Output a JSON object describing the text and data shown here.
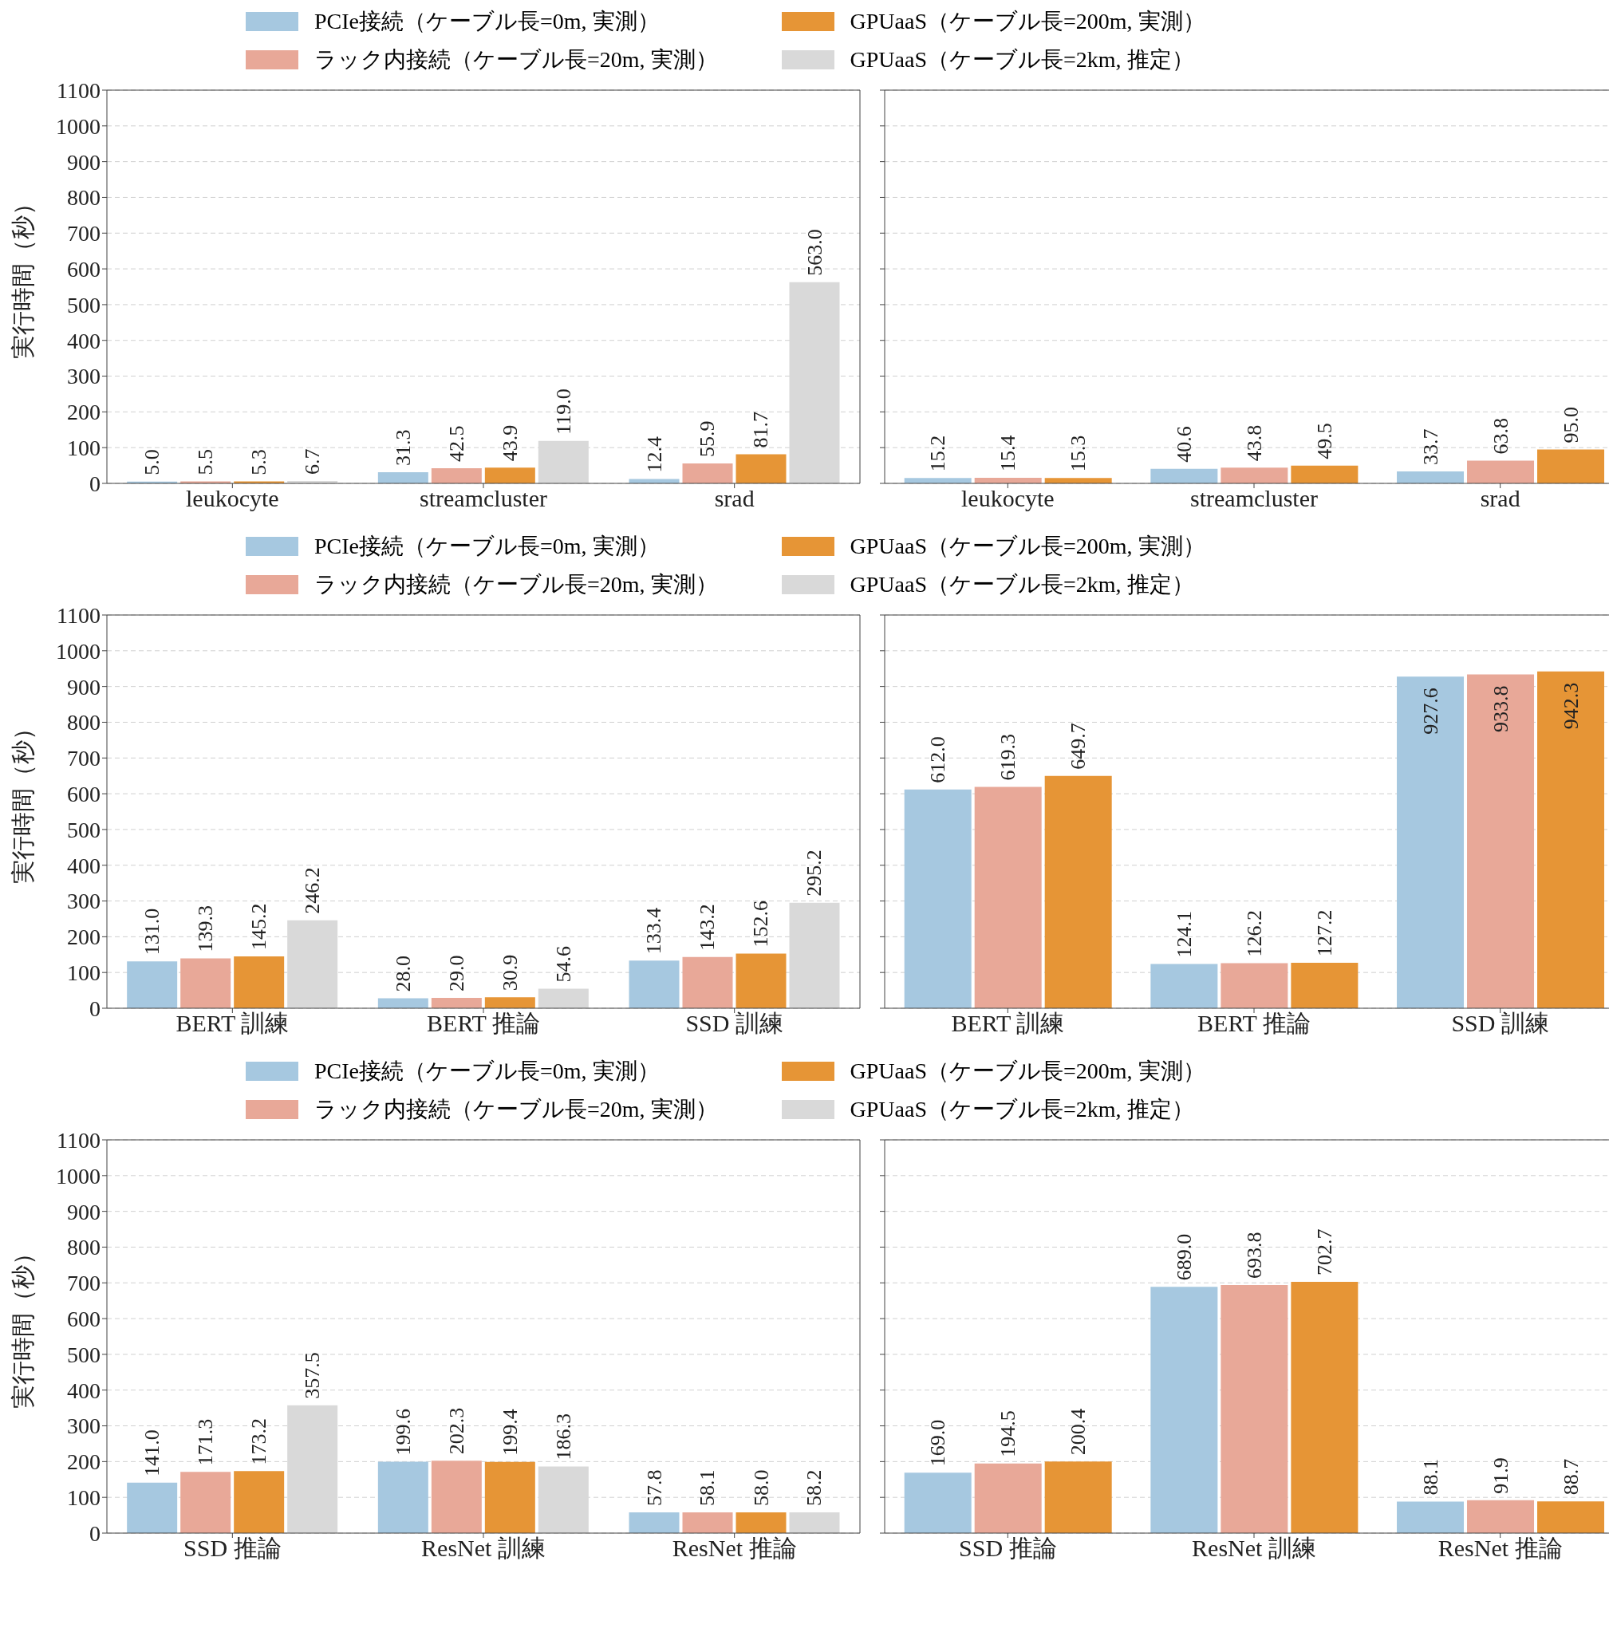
{
  "chart_data": [
    {
      "type": "bar",
      "ylabel": "実行時間（秒）",
      "categories": [
        "leukocyte",
        "streamcluster",
        "srad"
      ],
      "ylim": [
        0,
        1100
      ],
      "yticks": [
        0,
        100,
        200,
        300,
        400,
        500,
        600,
        700,
        800,
        900,
        1000,
        1100
      ],
      "grid": "y",
      "legend": "top",
      "series": [
        {
          "name": "PCIe接続（ケーブル長=0m, 実測）",
          "color": "#a6c8e0",
          "values": [
            5.0,
            31.3,
            12.4
          ],
          "value_labels": [
            "5.0",
            "31.3",
            "12.4"
          ]
        },
        {
          "name": "ラック内接続（ケーブル長=20m, 実測）",
          "color": "#e8a898",
          "values": [
            5.5,
            42.5,
            55.9
          ],
          "value_labels": [
            "5.5",
            "42.5",
            "55.9"
          ]
        },
        {
          "name": "GPUaaS（ケーブル長=200m, 実測）",
          "color": "#e69536",
          "values": [
            5.3,
            43.9,
            81.7
          ],
          "value_labels": [
            "5.3",
            "43.9",
            "81.7"
          ]
        },
        {
          "name": "GPUaaS（ケーブル長=2km, 推定）",
          "color": "#d9d9d9",
          "values": [
            6.7,
            119.0,
            563.0
          ],
          "value_labels": [
            "6.7",
            "119.0",
            "563.0"
          ]
        }
      ]
    },
    {
      "type": "bar",
      "categories": [
        "leukocyte",
        "streamcluster",
        "srad"
      ],
      "ylim": [
        0,
        1100
      ],
      "yticks": [
        0,
        100,
        200,
        300,
        400,
        500,
        600,
        700,
        800,
        900,
        1000,
        1100
      ],
      "grid": "y",
      "tick_labels": "x",
      "series": [
        {
          "color": "#a6c8e0",
          "values": [
            15.2,
            40.6,
            33.7
          ],
          "value_labels": [
            "15.2",
            "40.6",
            "33.7"
          ]
        },
        {
          "color": "#e8a898",
          "values": [
            15.4,
            43.8,
            63.8
          ],
          "value_labels": [
            "15.4",
            "43.8",
            "63.8"
          ]
        },
        {
          "color": "#e69536",
          "values": [
            15.3,
            49.5,
            95.0
          ],
          "value_labels": [
            "15.3",
            "49.5",
            "95.0"
          ]
        }
      ]
    },
    {
      "type": "bar",
      "ylabel": "実行時間（秒）",
      "categories": [
        "BERT 訓練",
        "BERT 推論",
        "SSD 訓練"
      ],
      "ylim": [
        0,
        1100
      ],
      "yticks": [
        0,
        100,
        200,
        300,
        400,
        500,
        600,
        700,
        800,
        900,
        1000,
        1100
      ],
      "grid": "y",
      "legend": "top",
      "series": [
        {
          "name": "PCIe接続（ケーブル長=0m, 実測）",
          "color": "#a6c8e0",
          "values": [
            131.0,
            28.0,
            133.4
          ],
          "value_labels": [
            "131.0",
            "28.0",
            "133.4"
          ]
        },
        {
          "name": "ラック内接続（ケーブル長=20m, 実測）",
          "color": "#e8a898",
          "values": [
            139.3,
            29.0,
            143.2
          ],
          "value_labels": [
            "139.3",
            "29.0",
            "143.2"
          ]
        },
        {
          "name": "GPUaaS（ケーブル長=200m, 実測）",
          "color": "#e69536",
          "values": [
            145.2,
            30.9,
            152.6
          ],
          "value_labels": [
            "145.2",
            "30.9",
            "152.6"
          ]
        },
        {
          "name": "GPUaaS（ケーブル長=2km, 推定）",
          "color": "#d9d9d9",
          "values": [
            246.2,
            54.6,
            295.2
          ],
          "value_labels": [
            "246.2",
            "54.6",
            "295.2"
          ]
        }
      ]
    },
    {
      "type": "bar",
      "categories": [
        "BERT 訓練",
        "BERT 推論",
        "SSD 訓練"
      ],
      "ylim": [
        0,
        1100
      ],
      "yticks": [
        0,
        100,
        200,
        300,
        400,
        500,
        600,
        700,
        800,
        900,
        1000,
        1100
      ],
      "grid": "y",
      "tick_labels": "x",
      "series": [
        {
          "color": "#a6c8e0",
          "values": [
            612.0,
            124.1,
            927.6
          ],
          "value_labels": [
            "612.0",
            "124.1",
            "927.6"
          ]
        },
        {
          "color": "#e8a898",
          "values": [
            619.3,
            126.2,
            933.8
          ],
          "value_labels": [
            "619.3",
            "126.2",
            "933.8"
          ]
        },
        {
          "color": "#e69536",
          "values": [
            649.7,
            127.2,
            942.3
          ],
          "value_labels": [
            "649.7",
            "127.2",
            "942.3"
          ]
        }
      ]
    },
    {
      "type": "bar",
      "ylabel": "実行時間（秒）",
      "categories": [
        "SSD 推論",
        "ResNet 訓練",
        "ResNet 推論"
      ],
      "ylim": [
        0,
        1100
      ],
      "yticks": [
        0,
        100,
        200,
        300,
        400,
        500,
        600,
        700,
        800,
        900,
        1000,
        1100
      ],
      "grid": "y",
      "legend": "top",
      "series": [
        {
          "name": "PCIe接続（ケーブル長=0m, 実測）",
          "color": "#a6c8e0",
          "values": [
            141.0,
            199.6,
            57.8
          ],
          "value_labels": [
            "141.0",
            "199.6",
            "57.8"
          ]
        },
        {
          "name": "ラック内接続（ケーブル長=20m, 実測）",
          "color": "#e8a898",
          "values": [
            171.3,
            202.3,
            58.1
          ],
          "value_labels": [
            "171.3",
            "202.3",
            "58.1"
          ]
        },
        {
          "name": "GPUaaS（ケーブル長=200m, 実測）",
          "color": "#e69536",
          "values": [
            173.2,
            199.4,
            58.0
          ],
          "value_labels": [
            "173.2",
            "199.4",
            "58.0"
          ]
        },
        {
          "name": "GPUaaS（ケーブル長=2km, 推定）",
          "color": "#d9d9d9",
          "values": [
            357.5,
            186.3,
            58.2
          ],
          "value_labels": [
            "357.5",
            "186.3",
            "58.2"
          ]
        }
      ]
    },
    {
      "type": "bar",
      "categories": [
        "SSD 推論",
        "ResNet 訓練",
        "ResNet 推論"
      ],
      "ylim": [
        0,
        1100
      ],
      "yticks": [
        0,
        100,
        200,
        300,
        400,
        500,
        600,
        700,
        800,
        900,
        1000,
        1100
      ],
      "grid": "y",
      "tick_labels": "x",
      "series": [
        {
          "color": "#a6c8e0",
          "values": [
            169.0,
            689.0,
            88.1
          ],
          "value_labels": [
            "169.0",
            "689.0",
            "88.1"
          ]
        },
        {
          "color": "#e8a898",
          "values": [
            194.5,
            693.8,
            91.9
          ],
          "value_labels": [
            "194.5",
            "693.8",
            "91.9"
          ]
        },
        {
          "color": "#e69536",
          "values": [
            200.4,
            702.7,
            88.7
          ],
          "value_labels": [
            "200.4",
            "702.7",
            "88.7"
          ]
        }
      ]
    }
  ]
}
